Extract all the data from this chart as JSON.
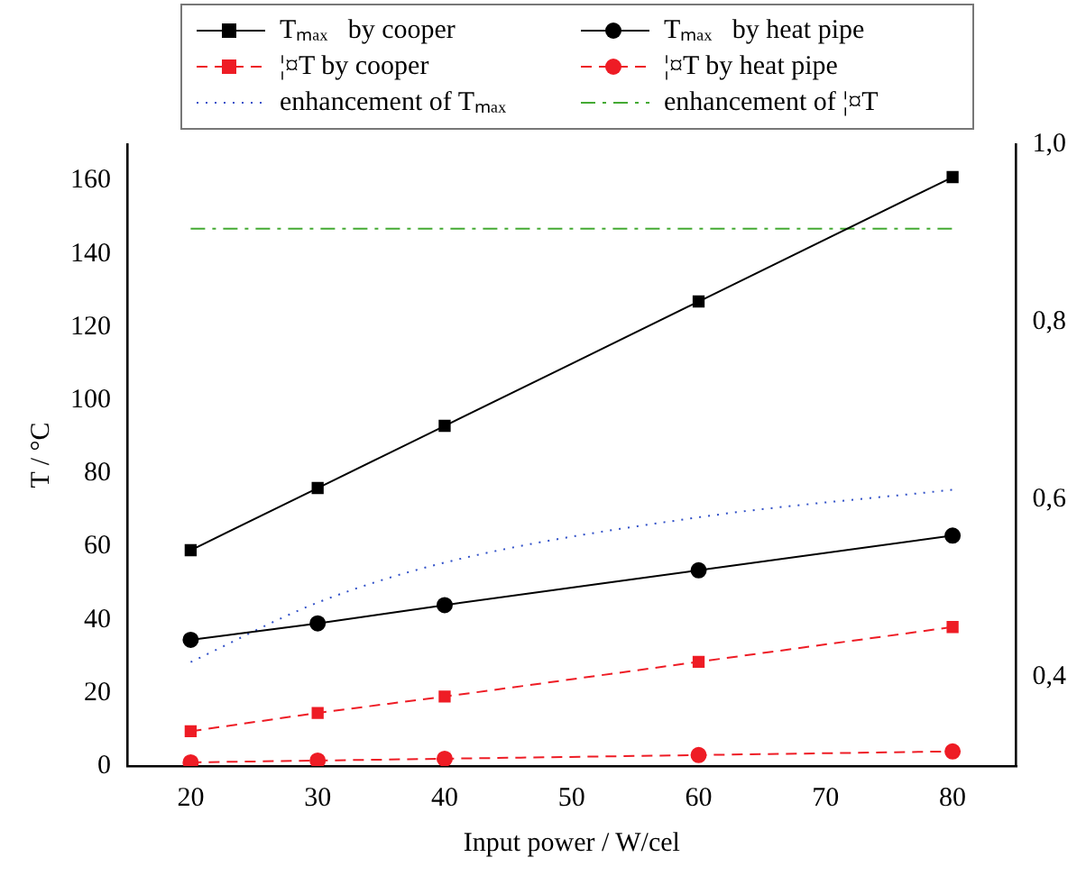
{
  "chart_data": {
    "type": "line",
    "xlabel": "Input power / W/cel",
    "ylabel": "T / °C",
    "x": [
      20,
      30,
      40,
      60,
      80
    ],
    "xlim": [
      15,
      85
    ],
    "xticks": [
      20,
      30,
      40,
      50,
      60,
      70,
      80
    ],
    "ylim": [
      0,
      170
    ],
    "yticks": [
      0,
      20,
      40,
      60,
      80,
      100,
      120,
      140,
      160
    ],
    "y2lim": [
      0.3,
      1.0
    ],
    "y2ticks": [
      {
        "value": 0.4,
        "label": "0,4"
      },
      {
        "value": 0.6,
        "label": "0,6"
      },
      {
        "value": 0.8,
        "label": "0,8"
      },
      {
        "value": 1.0,
        "label": "1,0"
      }
    ],
    "legend": "top",
    "series": [
      {
        "name": "Tₘₐₓ   by cooper",
        "color": "#000000",
        "values": [
          59,
          76,
          93,
          127,
          161
        ],
        "marker": "square",
        "line_style": "solid"
      },
      {
        "name": "Tₘₐₓ   by heat pipe",
        "color": "#000000",
        "values": [
          34.5,
          39,
          44,
          53.5,
          63
        ],
        "marker": "circle",
        "line_style": "solid"
      },
      {
        "name": "¦¤T by cooper",
        "color": "#ee1c25",
        "values": [
          9.5,
          14.5,
          19,
          28.5,
          38
        ],
        "marker": "square",
        "line_style": "dashed"
      },
      {
        "name": "¦¤T by heat pipe",
        "color": "#ee1c25",
        "values": [
          1,
          1.5,
          2,
          3,
          4
        ],
        "marker": "circle",
        "line_style": "dashed"
      },
      {
        "name": "enhancement of Tₘₐₓ",
        "color": "#3050c8",
        "values": [
          0.417,
          0.484,
          0.529,
          0.58,
          0.611
        ],
        "marker": "none",
        "line_style": "dotted",
        "axis": "y2"
      },
      {
        "name": "enhancement of ¦¤T",
        "color": "#44aa33",
        "values": [
          0.905,
          0.905,
          0.905,
          0.905,
          0.905
        ],
        "marker": "none",
        "line_style": "dashdot",
        "axis": "y2"
      }
    ]
  }
}
